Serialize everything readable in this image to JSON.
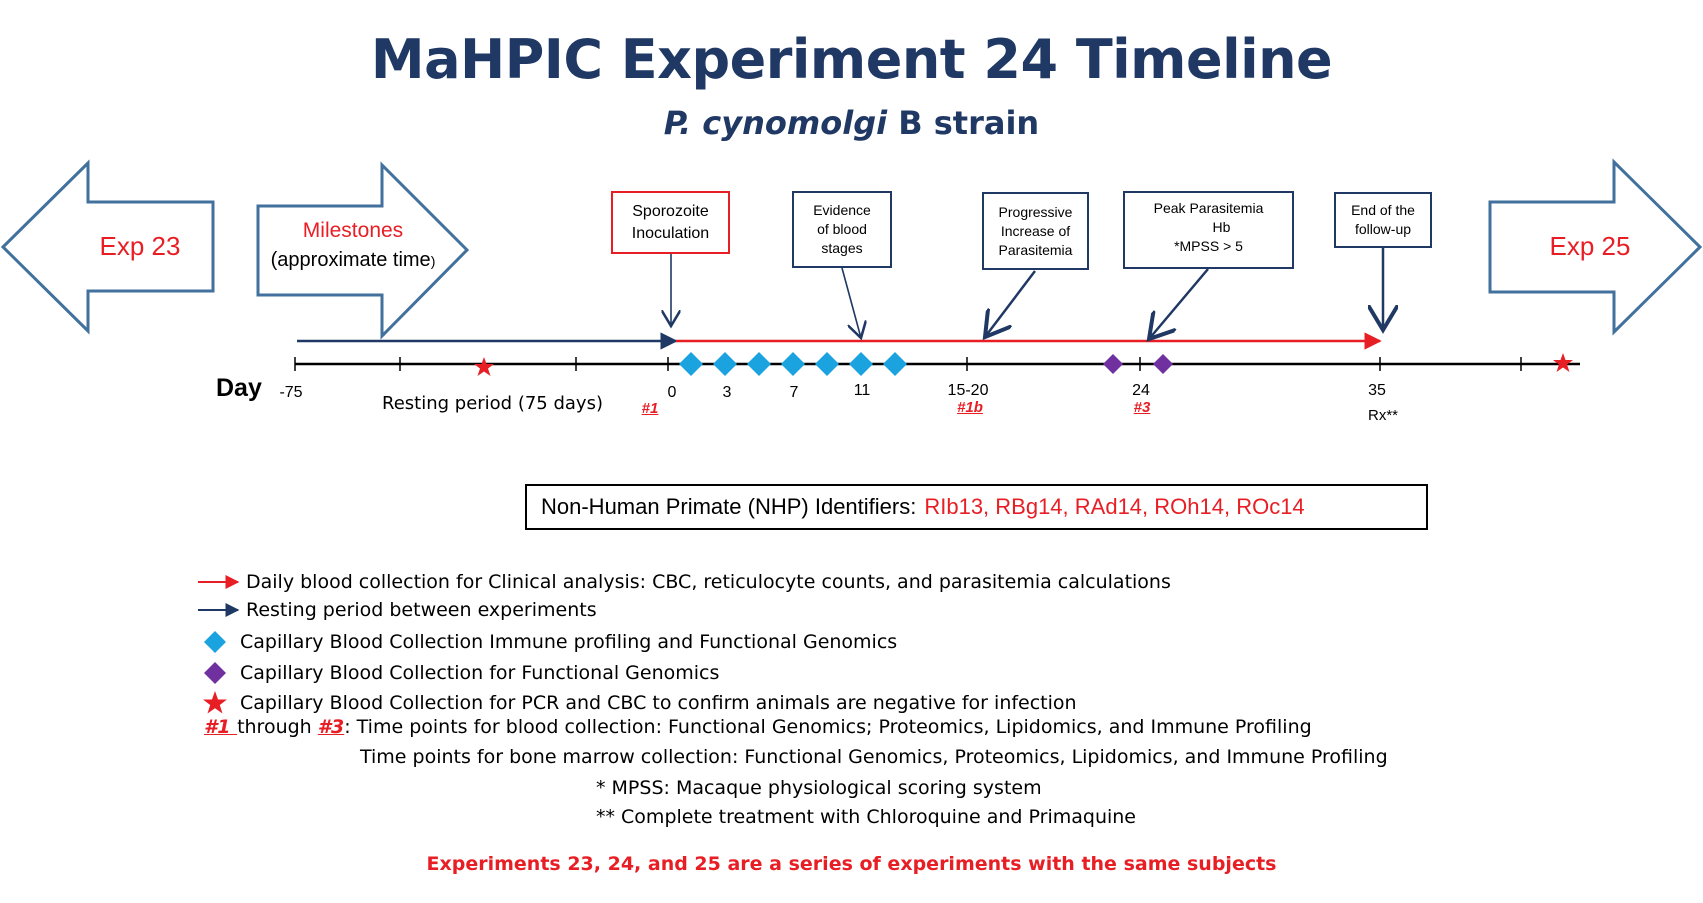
{
  "title": "MaHPIC Experiment 24 Timeline",
  "subtitle_italic": "P. cynomolgi",
  "subtitle_rest": " B strain",
  "exp_prev": "Exp 23",
  "exp_next": "Exp 25",
  "milestones_title": "Milestones",
  "milestones_sub": "(approximate time",
  "milestones_paren": ")",
  "milestones": [
    {
      "line1": "Sporozoite",
      "line2": "Inoculation",
      "line3": ""
    },
    {
      "line1": "Evidence",
      "line2": "of blood",
      "line3": "stages"
    },
    {
      "line1": "Progressive",
      "line2": "Increase of",
      "line3": "Parasitemia"
    },
    {
      "line1": "Peak Parasitemia",
      "line2": "Hb",
      "line3": "*MPSS > 5"
    },
    {
      "line1": "End of the",
      "line2": "follow-up",
      "line3": ""
    }
  ],
  "day_label": "Day",
  "ticks": [
    "-75",
    "0",
    "3",
    "7",
    "11",
    "15-20",
    "24",
    "35"
  ],
  "resting_label": "Resting period (75 days)",
  "timepoints": [
    "#1",
    "#1b",
    "#3"
  ],
  "rx_label": "Rx**",
  "nhp_label": "Non-Human Primate (NHP) Identifiers:",
  "nhp_ids": "RIb13, RBg14, RAd14, ROh14, ROc14",
  "legend": {
    "red_arrow": "Daily blood collection for Clinical analysis: CBC, reticulocyte counts, and parasitemia calculations",
    "blue_arrow": "Resting period between experiments",
    "blue_diamond": "Capillary Blood Collection Immune profiling and Functional Genomics",
    "purple_diamond": "Capillary Blood Collection for Functional Genomics",
    "red_star": "Capillary Blood Collection for PCR and CBC to confirm animals are negative for infection",
    "tp_first": "#1 ",
    "tp_through": "through ",
    "tp_last": "#3",
    "tp_text": ": Time points for blood collection: Functional Genomics; Proteomics, Lipidomics, and Immune Profiling",
    "bone_marrow": "Time points for bone marrow collection: Functional Genomics, Proteomics, Lipidomics, and Immune Profiling",
    "mpss_note": "* MPSS: Macaque physiological scoring system",
    "rx_note": "** Complete treatment with Chloroquine and Primaquine"
  },
  "footer": "Experiments 23, 24, and 25 are a series of experiments with the same subjects",
  "colors": {
    "navy": "#1f3864",
    "red": "#e81e25",
    "cyan": "#1ba3e0",
    "purple": "#7030a0"
  }
}
